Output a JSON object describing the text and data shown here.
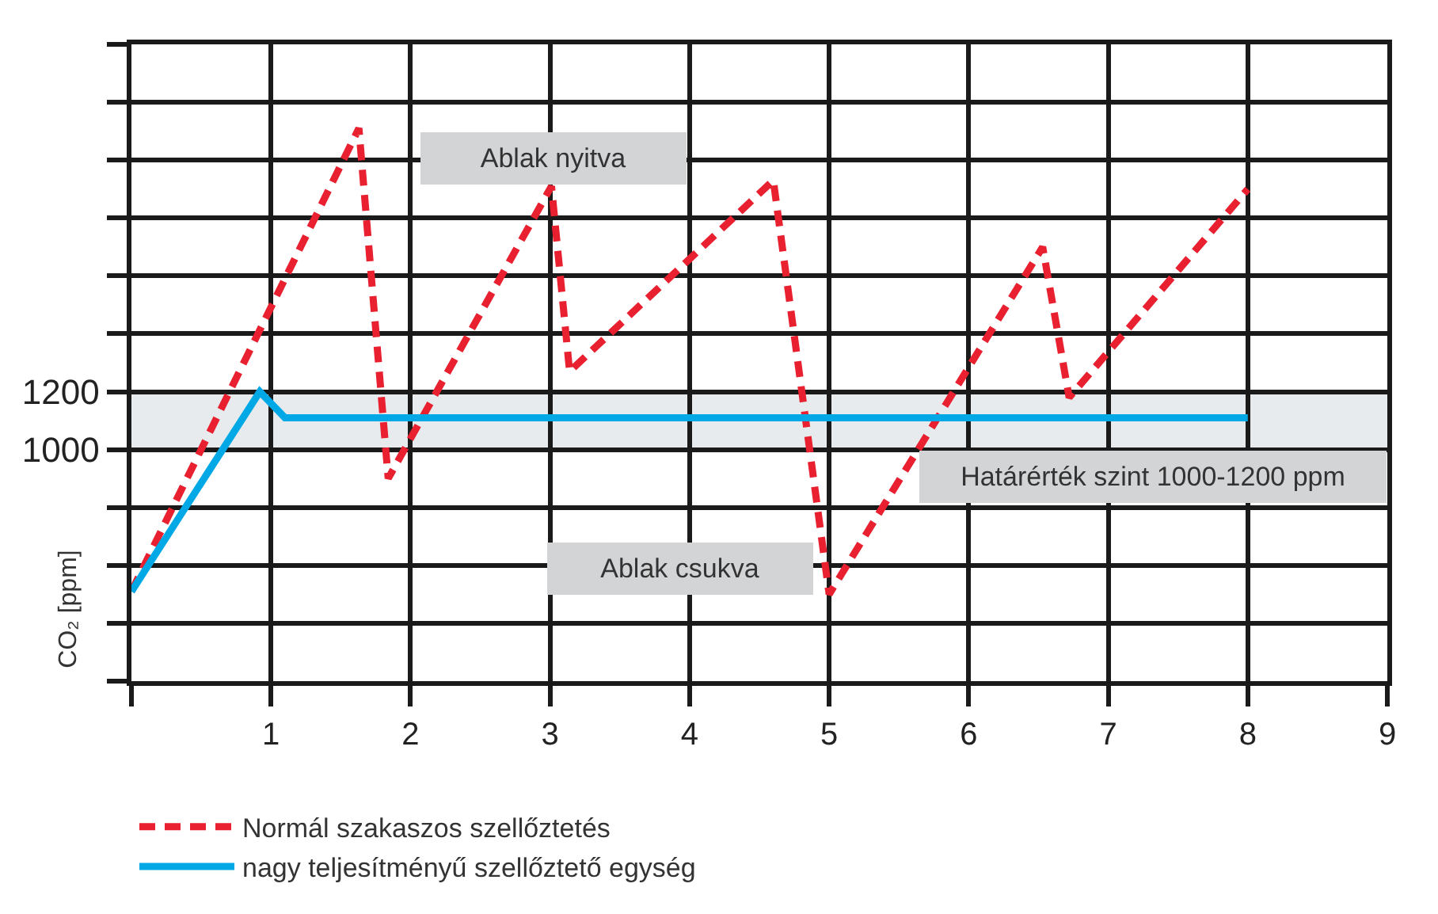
{
  "chart_data": {
    "type": "line",
    "ylabel": "CO₂ [ppm]",
    "xlim": [
      0,
      9
    ],
    "xticks": [
      {
        "value": 0,
        "label": null
      },
      1,
      2,
      3,
      4,
      5,
      6,
      7,
      8,
      9
    ],
    "ylim": [
      200,
      2400
    ],
    "yticks": [
      {
        "value": 200,
        "label": null
      },
      {
        "value": 400,
        "label": null
      },
      {
        "value": 600,
        "label": null
      },
      {
        "value": 800,
        "label": null
      },
      1000,
      1200,
      {
        "value": 1400,
        "label": null
      },
      {
        "value": 1600,
        "label": null
      },
      {
        "value": 1800,
        "label": null
      },
      {
        "value": 2000,
        "label": null
      },
      {
        "value": 2200,
        "label": null
      },
      {
        "value": 2400,
        "label": null
      }
    ],
    "grid": true,
    "legend": "bottom",
    "series": [
      {
        "name": "Normál szakaszos szellőztetés",
        "color": "#e8202f",
        "line_style": "dashed",
        "x": [
          0,
          1.63,
          1.84,
          3.01,
          3.14,
          4.6,
          5.0,
          6.53,
          6.72,
          8.0
        ],
        "values": [
          510,
          2110,
          900,
          1910,
          1270,
          1930,
          500,
          1700,
          1180,
          1900
        ]
      },
      {
        "name": "nagy teljesítményű szellőztető egység",
        "color": "#00a9e6",
        "line_style": "solid",
        "x": [
          0,
          0.92,
          1.1,
          8.0
        ],
        "values": [
          510,
          1200,
          1110,
          1110
        ]
      }
    ],
    "bands": [
      {
        "axis": "y",
        "from": 1000,
        "to": 1200,
        "label": "Határérték szint 1000-1200 ppm",
        "color": "#e7ebee"
      }
    ],
    "annotations": [
      "Ablak nyitva",
      "Ablak csukva"
    ]
  }
}
